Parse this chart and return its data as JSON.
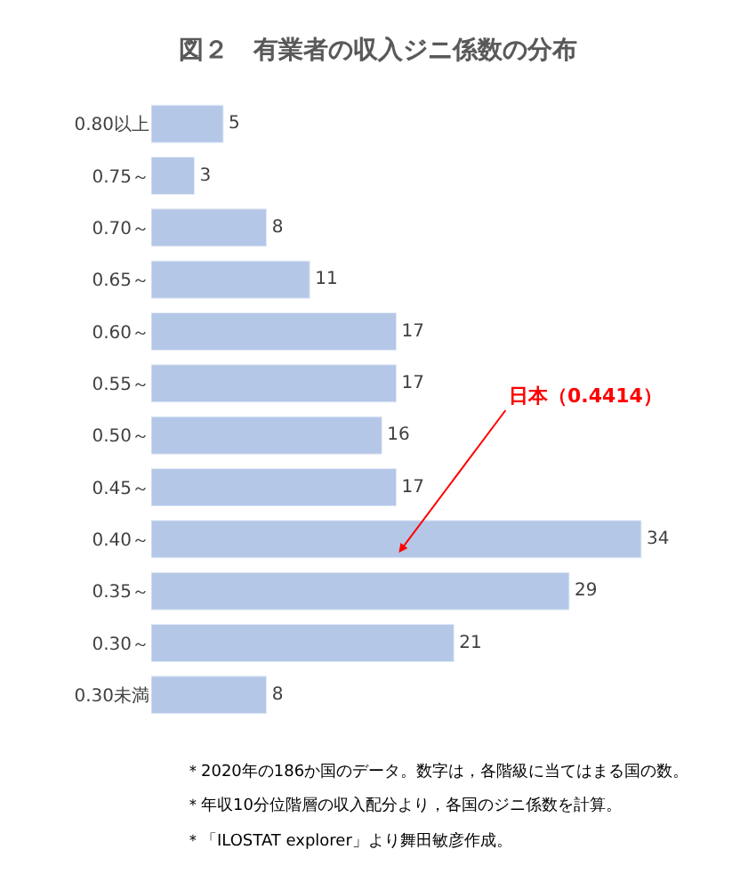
{
  "chart_data": {
    "type": "bar",
    "orientation": "horizontal",
    "title": "図２　有業者の収入ジニ係数の分布",
    "categories": [
      "0.80以上",
      "0.75～",
      "0.70～",
      "0.65～",
      "0.60～",
      "0.55～",
      "0.50～",
      "0.45～",
      "0.40～",
      "0.35～",
      "0.30～",
      "0.30未満"
    ],
    "values": [
      5,
      3,
      8,
      11,
      17,
      17,
      16,
      17,
      34,
      29,
      21,
      8
    ],
    "color": "#b4c7e7",
    "data_labels": true,
    "annotations": [
      "日本（0.4414）",
      "＊2020年の186か国のデータ。数字は，各階級に当てはまる国の数。",
      "＊年収10分位階層の収入配分より，各国のジニ係数を計算。",
      "＊「ILOSTAT explorer」より舞田敏彦作成。"
    ]
  }
}
